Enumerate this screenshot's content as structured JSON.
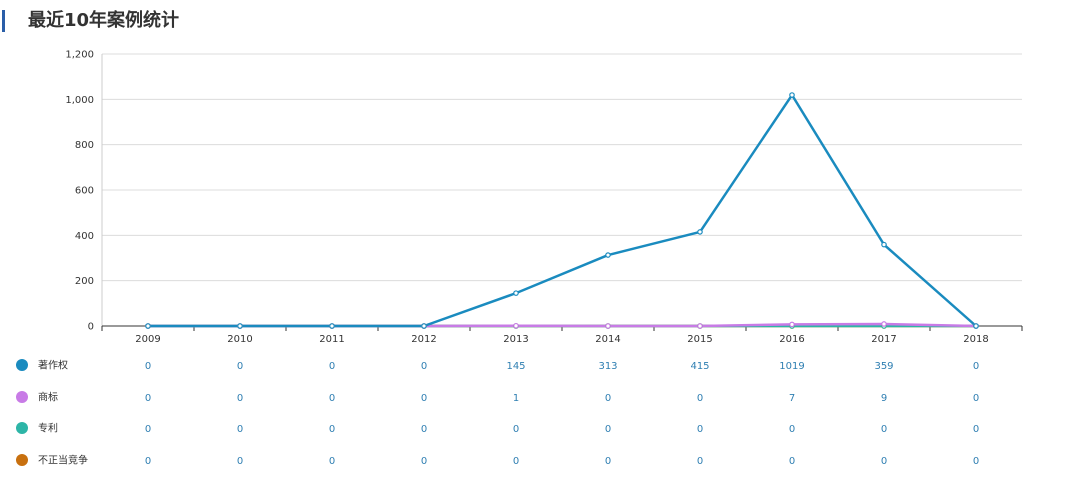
{
  "header": {
    "title": "最近10年案例统计"
  },
  "chart_data": {
    "type": "line",
    "title": "",
    "xlabel": "",
    "ylabel": "",
    "categories": [
      "2009",
      "2010",
      "2011",
      "2012",
      "2013",
      "2014",
      "2015",
      "2016",
      "2017",
      "2018"
    ],
    "ylim": [
      0,
      1200
    ],
    "yticks": [
      0,
      200,
      400,
      600,
      800,
      1000,
      1200
    ],
    "ytick_labels": [
      "0",
      "200",
      "400",
      "600",
      "800",
      "1,000",
      "1,200"
    ],
    "grid": true,
    "legend_position": "bottom-left (data table rows)",
    "series": [
      {
        "name": "著作权",
        "color": "#1a8bbf",
        "values": [
          0,
          0,
          0,
          0,
          145,
          313,
          415,
          1019,
          359,
          0
        ]
      },
      {
        "name": "商标",
        "color": "#c87be6",
        "values": [
          0,
          0,
          0,
          0,
          1,
          0,
          0,
          7,
          9,
          0
        ]
      },
      {
        "name": "专利",
        "color": "#2db5a7",
        "values": [
          0,
          0,
          0,
          0,
          0,
          0,
          0,
          0,
          0,
          0
        ]
      },
      {
        "name": "不正当竞争",
        "color": "#c8700f",
        "values": [
          0,
          0,
          0,
          0,
          0,
          0,
          0,
          0,
          0,
          0
        ]
      }
    ],
    "table_text_color": "#2f7fb2"
  }
}
